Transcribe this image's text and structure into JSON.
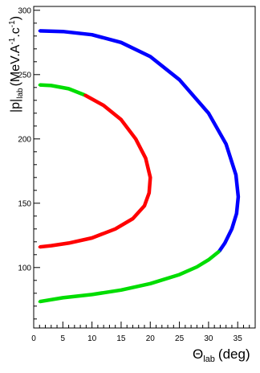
{
  "chart_data": {
    "type": "scatter",
    "xlabel_main": "Θ",
    "xlabel_sub": "lab",
    "xlabel_unit": "(deg)",
    "ylabel_main": "|p|",
    "ylabel_sub": "lab",
    "ylabel_unit": "(MeV.A",
    "ylabel_unit_sup1": "-1",
    "ylabel_unit_mid": ".c",
    "ylabel_unit_sup2": "-1",
    "ylabel_unit_end": ")",
    "xlim": [
      0,
      38
    ],
    "ylim": [
      53,
      303
    ],
    "x_ticks": [
      0,
      5,
      10,
      15,
      20,
      25,
      30,
      35
    ],
    "y_ticks": [
      100,
      150,
      200,
      250,
      300
    ],
    "grid": false,
    "series": [
      {
        "color": "#0000ff",
        "points": [
          [
            1,
            284
          ],
          [
            5,
            283.5
          ],
          [
            10,
            281
          ],
          [
            15,
            275
          ],
          [
            20,
            264
          ],
          [
            25,
            246
          ],
          [
            30,
            220
          ],
          [
            33,
            196
          ],
          [
            34.7,
            172
          ],
          [
            35.1,
            155
          ],
          [
            34.8,
            142
          ],
          [
            34,
            130
          ],
          [
            32.8,
            119
          ],
          [
            31.8,
            112.5
          ]
        ]
      },
      {
        "color": "#00dd00",
        "points": [
          [
            31.8,
            112.5
          ],
          [
            30,
            106
          ],
          [
            28,
            100.5
          ],
          [
            25,
            94.5
          ],
          [
            20,
            87.5
          ],
          [
            15,
            82.5
          ],
          [
            10,
            79
          ],
          [
            5,
            76.5
          ],
          [
            1,
            73.5
          ]
        ]
      },
      {
        "color": "#00dd00",
        "points": [
          [
            1,
            242
          ],
          [
            3,
            241.5
          ],
          [
            6,
            239
          ],
          [
            8.8,
            234
          ]
        ]
      },
      {
        "color": "#ff0000",
        "points": [
          [
            8.8,
            234
          ],
          [
            12,
            226
          ],
          [
            15,
            215
          ],
          [
            17.5,
            200
          ],
          [
            19.2,
            185
          ],
          [
            20,
            170
          ],
          [
            19.8,
            158
          ],
          [
            19,
            148
          ],
          [
            17,
            138
          ],
          [
            14,
            130
          ],
          [
            10,
            123
          ],
          [
            6,
            119
          ],
          [
            3,
            117
          ],
          [
            1,
            116
          ]
        ]
      }
    ]
  }
}
